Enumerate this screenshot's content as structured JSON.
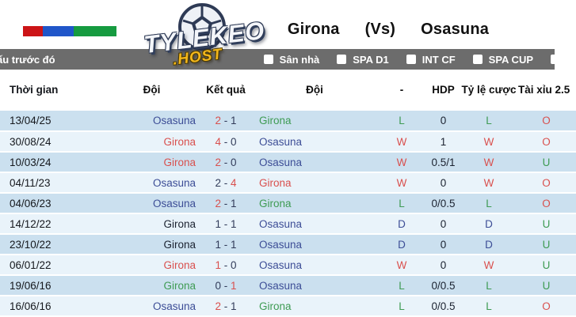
{
  "brand": {
    "logo_main": "TYLEKEO",
    "logo_sub": ".HOST"
  },
  "header": {
    "home_team": "Girona",
    "vs_label": "(Vs)",
    "away_team": "Osasuna"
  },
  "flag_colors": {
    "red": "#cc1417",
    "blue": "#2056c9",
    "green": "#169b40"
  },
  "filter_bar": {
    "title": "ấu trước đó",
    "items": [
      {
        "label": "Sân nhà"
      },
      {
        "label": "SPA D1"
      },
      {
        "label": "INT CF"
      },
      {
        "label": "SPA CUP"
      }
    ]
  },
  "table": {
    "columns": {
      "date": "Thời gian",
      "home": "Đội",
      "score": "Kết quả",
      "away": "Đội",
      "result": "-",
      "hdp": "HDP",
      "odds": "Tỷ lệ cược",
      "ou": "Tài xỉu 2.5"
    },
    "rows": [
      {
        "date": "13/04/25",
        "home": "Osasuna",
        "home_cls": "navy",
        "hs": "2",
        "hs_cls": "red",
        "as": "1",
        "as_cls": "slate",
        "away": "Girona",
        "away_cls": "green",
        "res": "L",
        "res_cls": "green",
        "hdp": "0",
        "odds": "L",
        "odds_cls": "green",
        "ou": "O",
        "ou_cls": "red"
      },
      {
        "date": "30/08/24",
        "home": "Girona",
        "home_cls": "red",
        "hs": "4",
        "hs_cls": "red",
        "as": "0",
        "as_cls": "slate",
        "away": "Osasuna",
        "away_cls": "navy",
        "res": "W",
        "res_cls": "red",
        "hdp": "1",
        "odds": "W",
        "odds_cls": "red",
        "ou": "O",
        "ou_cls": "red"
      },
      {
        "date": "10/03/24",
        "home": "Girona",
        "home_cls": "red",
        "hs": "2",
        "hs_cls": "red",
        "as": "0",
        "as_cls": "slate",
        "away": "Osasuna",
        "away_cls": "navy",
        "res": "W",
        "res_cls": "red",
        "hdp": "0.5/1",
        "odds": "W",
        "odds_cls": "red",
        "ou": "U",
        "ou_cls": "green"
      },
      {
        "date": "04/11/23",
        "home": "Osasuna",
        "home_cls": "navy",
        "hs": "2",
        "hs_cls": "slate",
        "as": "4",
        "as_cls": "red",
        "away": "Girona",
        "away_cls": "red",
        "res": "W",
        "res_cls": "red",
        "hdp": "0",
        "odds": "W",
        "odds_cls": "red",
        "ou": "O",
        "ou_cls": "red"
      },
      {
        "date": "04/06/23",
        "home": "Osasuna",
        "home_cls": "navy",
        "hs": "2",
        "hs_cls": "red",
        "as": "1",
        "as_cls": "slate",
        "away": "Girona",
        "away_cls": "green",
        "res": "L",
        "res_cls": "green",
        "hdp": "0/0.5",
        "odds": "L",
        "odds_cls": "green",
        "ou": "O",
        "ou_cls": "red"
      },
      {
        "date": "14/12/22",
        "home": "Girona",
        "home_cls": "dark",
        "hs": "1",
        "hs_cls": "slate",
        "as": "1",
        "as_cls": "slate",
        "away": "Osasuna",
        "away_cls": "navy",
        "res": "D",
        "res_cls": "navy",
        "hdp": "0",
        "odds": "D",
        "odds_cls": "navy",
        "ou": "U",
        "ou_cls": "green"
      },
      {
        "date": "23/10/22",
        "home": "Girona",
        "home_cls": "dark",
        "hs": "1",
        "hs_cls": "slate",
        "as": "1",
        "as_cls": "slate",
        "away": "Osasuna",
        "away_cls": "navy",
        "res": "D",
        "res_cls": "navy",
        "hdp": "0",
        "odds": "D",
        "odds_cls": "navy",
        "ou": "U",
        "ou_cls": "green"
      },
      {
        "date": "06/01/22",
        "home": "Girona",
        "home_cls": "red",
        "hs": "1",
        "hs_cls": "red",
        "as": "0",
        "as_cls": "slate",
        "away": "Osasuna",
        "away_cls": "navy",
        "res": "W",
        "res_cls": "red",
        "hdp": "0",
        "odds": "W",
        "odds_cls": "red",
        "ou": "U",
        "ou_cls": "green"
      },
      {
        "date": "19/06/16",
        "home": "Girona",
        "home_cls": "green",
        "hs": "0",
        "hs_cls": "slate",
        "as": "1",
        "as_cls": "red",
        "away": "Osasuna",
        "away_cls": "navy",
        "res": "L",
        "res_cls": "green",
        "hdp": "0/0.5",
        "odds": "L",
        "odds_cls": "green",
        "ou": "U",
        "ou_cls": "green"
      },
      {
        "date": "16/06/16",
        "home": "Osasuna",
        "home_cls": "navy",
        "hs": "2",
        "hs_cls": "red",
        "as": "1",
        "as_cls": "slate",
        "away": "Girona",
        "away_cls": "green",
        "res": "L",
        "res_cls": "green",
        "hdp": "0/0.5",
        "odds": "L",
        "odds_cls": "green",
        "ou": "O",
        "ou_cls": "red"
      }
    ]
  }
}
